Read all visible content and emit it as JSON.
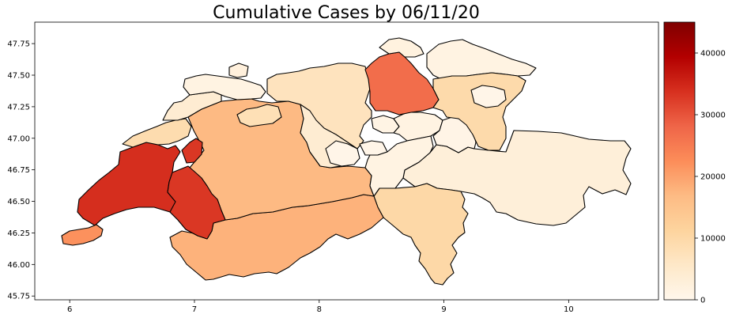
{
  "title": "Cumulative Cases by 06/11/20",
  "map": {
    "x_ticks": [
      "6",
      "7",
      "8",
      "9",
      "10"
    ],
    "y_ticks": [
      "45.75",
      "46.00",
      "46.25",
      "46.50",
      "46.75",
      "47.00",
      "47.25",
      "47.50",
      "47.75"
    ]
  },
  "colorbar": {
    "colormap": "OrRd",
    "range": [
      0,
      45000
    ],
    "ticks": [
      "0",
      "10000",
      "20000",
      "30000",
      "40000"
    ],
    "colors": [
      "#fff7ec",
      "#fee8c8",
      "#fdd49e",
      "#fdbb84",
      "#fc8d59",
      "#ef6548",
      "#d7301f",
      "#b30000",
      "#7f0000"
    ]
  },
  "chart_data": {
    "type": "choropleth",
    "title": "Cumulative Cases by 06/11/20",
    "xlim": [
      5.72,
      10.72
    ],
    "ylim": [
      45.72,
      47.92
    ],
    "regions": [
      {
        "id": "geneva",
        "value": 22000
      },
      {
        "id": "vaud",
        "value": 34000
      },
      {
        "id": "fribourg",
        "value": 33000
      },
      {
        "id": "valais",
        "value": 18000
      },
      {
        "id": "bern",
        "value": 17000
      },
      {
        "id": "neuchatel",
        "value": 9000
      },
      {
        "id": "jura",
        "value": 4000
      },
      {
        "id": "solothurn",
        "value": 8000
      },
      {
        "id": "basel-stadt",
        "value": 2500
      },
      {
        "id": "basel-landschaft",
        "value": 1500
      },
      {
        "id": "aargau",
        "value": 7000
      },
      {
        "id": "zurich",
        "value": 27000
      },
      {
        "id": "schaffhausen",
        "value": 2000
      },
      {
        "id": "thurgau",
        "value": 1500
      },
      {
        "id": "st-gallen",
        "value": 9500
      },
      {
        "id": "appenzell",
        "value": 600
      },
      {
        "id": "lucerne",
        "value": 4000
      },
      {
        "id": "zug",
        "value": 1200
      },
      {
        "id": "schwyz",
        "value": 1500
      },
      {
        "id": "obwalden",
        "value": 600
      },
      {
        "id": "nidwalden",
        "value": 600
      },
      {
        "id": "uri",
        "value": 1500
      },
      {
        "id": "glarus",
        "value": 1000
      },
      {
        "id": "graubunden",
        "value": 3000
      },
      {
        "id": "ticino",
        "value": 10000
      }
    ]
  }
}
